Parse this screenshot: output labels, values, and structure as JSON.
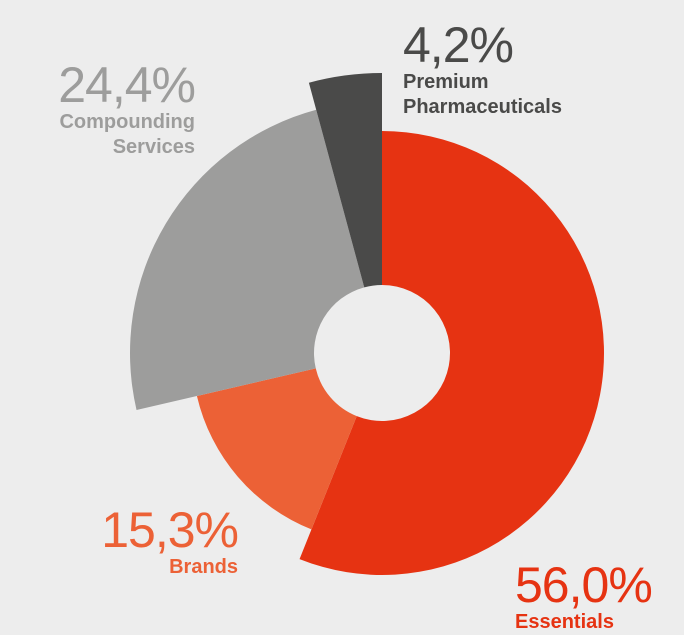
{
  "chart_data": {
    "type": "pie",
    "categories": [
      "Essentials",
      "Brands",
      "Compounding Services",
      "Premium Pharmaceuticals"
    ],
    "values": [
      56.0,
      15.3,
      24.4,
      4.2
    ],
    "value_labels": [
      "56,0%",
      "15,3%",
      "24,4%",
      "4,2%"
    ],
    "colors": [
      "#e63312",
      "#ec6136",
      "#9d9d9c",
      "#4a4a49"
    ]
  }
}
